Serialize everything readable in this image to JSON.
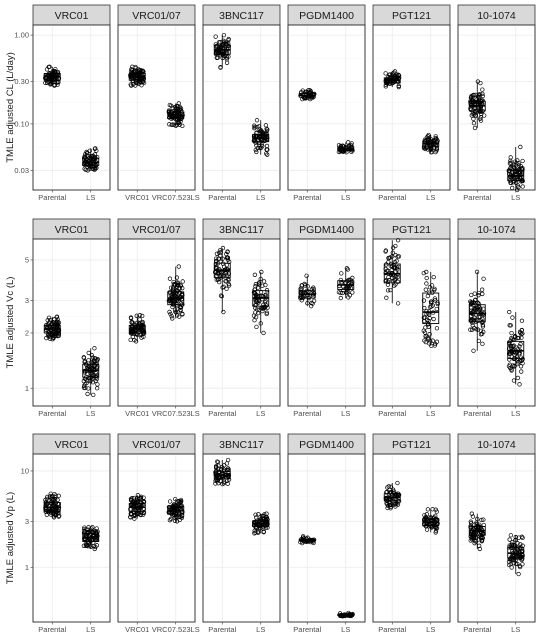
{
  "chart_data": [
    {
      "type": "box",
      "ylabel": "TMLE adjusted CL (L/day)",
      "y_scale": "log",
      "ylim": [
        0.018,
        1.3
      ],
      "y_ticks": [
        0.03,
        0.1,
        0.3,
        1.0
      ],
      "y_tick_labels": [
        "0.03",
        "0.10",
        "0.30",
        "1.00"
      ],
      "panels": [
        {
          "name": "VRC01",
          "categories": [
            "Parental",
            "LS"
          ],
          "medians": [
            0.34,
            0.037
          ],
          "q1": [
            0.31,
            0.034
          ],
          "q3": [
            0.37,
            0.041
          ],
          "min": [
            0.27,
            0.03
          ],
          "max": [
            0.44,
            0.053
          ],
          "n": [
            80,
            70
          ]
        },
        {
          "name": "VRC01/07",
          "categories": [
            "VRC01",
            "VRC07.523LS"
          ],
          "medians": [
            0.34,
            0.125
          ],
          "q1": [
            0.31,
            0.115
          ],
          "q3": [
            0.37,
            0.135
          ],
          "min": [
            0.27,
            0.095
          ],
          "max": [
            0.44,
            0.17
          ],
          "n": [
            80,
            80
          ]
        },
        {
          "name": "3BNC117",
          "categories": [
            "Parental",
            "LS"
          ],
          "medians": [
            0.68,
            0.069
          ],
          "q1": [
            0.61,
            0.063
          ],
          "q3": [
            0.76,
            0.076
          ],
          "min": [
            0.43,
            0.045
          ],
          "max": [
            1.0,
            0.11
          ],
          "n": [
            70,
            70
          ]
        },
        {
          "name": "PGDM1400",
          "categories": [
            "Parental",
            "LS"
          ],
          "medians": [
            0.21,
            0.052
          ],
          "q1": [
            0.2,
            0.05
          ],
          "q3": [
            0.22,
            0.055
          ],
          "min": [
            0.19,
            0.048
          ],
          "max": [
            0.24,
            0.062
          ],
          "n": [
            40,
            40
          ]
        },
        {
          "name": "PGT121",
          "categories": [
            "Parental",
            "LS"
          ],
          "medians": [
            0.31,
            0.06
          ],
          "q1": [
            0.29,
            0.056
          ],
          "q3": [
            0.33,
            0.064
          ],
          "min": [
            0.26,
            0.048
          ],
          "max": [
            0.39,
            0.075
          ],
          "n": [
            60,
            60
          ]
        },
        {
          "name": "10-1074",
          "categories": [
            "Parental",
            "LS"
          ],
          "medians": [
            0.16,
            0.026
          ],
          "q1": [
            0.14,
            0.023
          ],
          "q3": [
            0.18,
            0.03
          ],
          "min": [
            0.09,
            0.018
          ],
          "max": [
            0.3,
            0.055
          ],
          "n": [
            80,
            80
          ]
        }
      ]
    },
    {
      "type": "box",
      "ylabel": "TMLE adjusted Vc (L)",
      "y_scale": "log",
      "ylim": [
        0.8,
        6.5
      ],
      "y_ticks": [
        1,
        2,
        3,
        5
      ],
      "y_tick_labels": [
        "1",
        "2",
        "3",
        "5"
      ],
      "panels": [
        {
          "name": "VRC01",
          "categories": [
            "Parental",
            "LS"
          ],
          "medians": [
            2.1,
            1.25
          ],
          "q1": [
            2.0,
            1.15
          ],
          "q3": [
            2.2,
            1.35
          ],
          "min": [
            1.85,
            0.92
          ],
          "max": [
            2.45,
            1.65
          ],
          "n": [
            80,
            80
          ]
        },
        {
          "name": "VRC01/07",
          "categories": [
            "VRC01",
            "VRC07.523LS"
          ],
          "medians": [
            2.1,
            3.1
          ],
          "q1": [
            2.0,
            2.85
          ],
          "q3": [
            2.2,
            3.35
          ],
          "min": [
            1.8,
            2.4
          ],
          "max": [
            2.5,
            4.6
          ],
          "n": [
            80,
            100
          ]
        },
        {
          "name": "3BNC117",
          "categories": [
            "Parental",
            "LS"
          ],
          "medians": [
            4.4,
            3.1
          ],
          "q1": [
            4.0,
            2.8
          ],
          "q3": [
            4.8,
            3.4
          ],
          "min": [
            2.6,
            2.0
          ],
          "max": [
            5.8,
            4.3
          ],
          "n": [
            70,
            70
          ]
        },
        {
          "name": "PGDM1400",
          "categories": [
            "Parental",
            "LS"
          ],
          "medians": [
            3.25,
            3.65
          ],
          "q1": [
            3.1,
            3.45
          ],
          "q3": [
            3.4,
            3.85
          ],
          "min": [
            2.8,
            3.1
          ],
          "max": [
            4.1,
            4.5
          ],
          "n": [
            40,
            40
          ]
        },
        {
          "name": "PGT121",
          "categories": [
            "Parental",
            "LS"
          ],
          "medians": [
            4.2,
            2.6
          ],
          "q1": [
            3.75,
            2.25
          ],
          "q3": [
            4.75,
            3.3
          ],
          "min": [
            2.9,
            1.7
          ],
          "max": [
            6.4,
            4.3
          ],
          "n": [
            60,
            60
          ]
        },
        {
          "name": "10-1074",
          "categories": [
            "Parental",
            "LS"
          ],
          "medians": [
            2.55,
            1.6
          ],
          "q1": [
            2.3,
            1.45
          ],
          "q3": [
            2.85,
            1.8
          ],
          "min": [
            1.6,
            1.05
          ],
          "max": [
            4.3,
            2.6
          ],
          "n": [
            80,
            80
          ]
        }
      ]
    },
    {
      "type": "box",
      "ylabel": "TMLE adjusted Vp (L)",
      "y_scale": "log",
      "ylim": [
        0.27,
        15
      ],
      "y_ticks": [
        1,
        3,
        10
      ],
      "y_tick_labels": [
        "1",
        "3",
        "10"
      ],
      "panels": [
        {
          "name": "VRC01",
          "categories": [
            "Parental",
            "LS"
          ],
          "medians": [
            4.2,
            2.05
          ],
          "q1": [
            3.8,
            1.85
          ],
          "q3": [
            4.7,
            2.25
          ],
          "min": [
            3.3,
            1.55
          ],
          "max": [
            5.8,
            2.6
          ],
          "n": [
            80,
            80
          ]
        },
        {
          "name": "VRC01/07",
          "categories": [
            "VRC01",
            "VRC07.523LS"
          ],
          "medians": [
            4.2,
            3.9
          ],
          "q1": [
            3.8,
            3.55
          ],
          "q3": [
            4.6,
            4.3
          ],
          "min": [
            3.2,
            3.0
          ],
          "max": [
            5.6,
            5.1
          ],
          "n": [
            80,
            80
          ]
        },
        {
          "name": "3BNC117",
          "categories": [
            "Parental",
            "LS"
          ],
          "medians": [
            9.0,
            2.85
          ],
          "q1": [
            8.3,
            2.65
          ],
          "q3": [
            9.9,
            3.05
          ],
          "min": [
            7.3,
            2.25
          ],
          "max": [
            13.0,
            3.6
          ],
          "n": [
            70,
            70
          ]
        },
        {
          "name": "PGDM1400",
          "categories": [
            "Parental",
            "LS"
          ],
          "medians": [
            1.9,
            0.32
          ],
          "q1": [
            1.87,
            0.315
          ],
          "q3": [
            1.95,
            0.325
          ],
          "min": [
            1.78,
            0.31
          ],
          "max": [
            2.1,
            0.335
          ],
          "n": [
            30,
            30
          ]
        },
        {
          "name": "PGT121",
          "categories": [
            "Parental",
            "LS"
          ],
          "medians": [
            5.3,
            2.95
          ],
          "q1": [
            4.9,
            2.7
          ],
          "q3": [
            5.8,
            3.2
          ],
          "min": [
            4.1,
            2.3
          ],
          "max": [
            7.5,
            4.0
          ],
          "n": [
            60,
            60
          ]
        },
        {
          "name": "10-1074",
          "categories": [
            "Parental",
            "LS"
          ],
          "medians": [
            2.4,
            1.4
          ],
          "q1": [
            2.15,
            1.25
          ],
          "q3": [
            2.65,
            1.6
          ],
          "min": [
            1.55,
            0.85
          ],
          "max": [
            3.6,
            2.15
          ],
          "n": [
            80,
            80
          ]
        }
      ]
    }
  ]
}
